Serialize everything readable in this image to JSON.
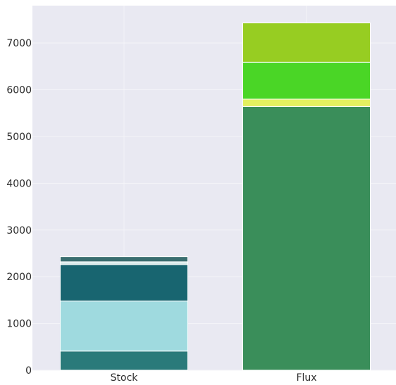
{
  "chart_data": {
    "type": "bar",
    "stacked": true,
    "categories": [
      "Stock",
      "Flux"
    ],
    "ylim": [
      0,
      7800
    ],
    "yticks": [
      0,
      1000,
      2000,
      3000,
      4000,
      5000,
      6000,
      7000
    ],
    "ytick_labels": [
      "0",
      "1000",
      "2000",
      "3000",
      "4000",
      "5000",
      "6000",
      "7000"
    ],
    "grid": true,
    "background": "#e9e9f2",
    "segments": [
      {
        "category": "Stock",
        "value": 410,
        "color": "#2a7a7a"
      },
      {
        "category": "Stock",
        "value": 1070,
        "color": "#9fdadf"
      },
      {
        "category": "Stock",
        "value": 780,
        "color": "#186570"
      },
      {
        "category": "Stock",
        "value": 60,
        "color": "#d9ecec"
      },
      {
        "category": "Stock",
        "value": 110,
        "color": "#3a6e70"
      },
      {
        "category": "Flux",
        "value": 5640,
        "color": "#3a8e5a"
      },
      {
        "category": "Flux",
        "value": 160,
        "color": "#e4f060"
      },
      {
        "category": "Flux",
        "value": 790,
        "color": "#4ad626"
      },
      {
        "category": "Flux",
        "value": 840,
        "color": "#97cd22"
      }
    ],
    "xlabel": "",
    "ylabel": "",
    "title": ""
  }
}
